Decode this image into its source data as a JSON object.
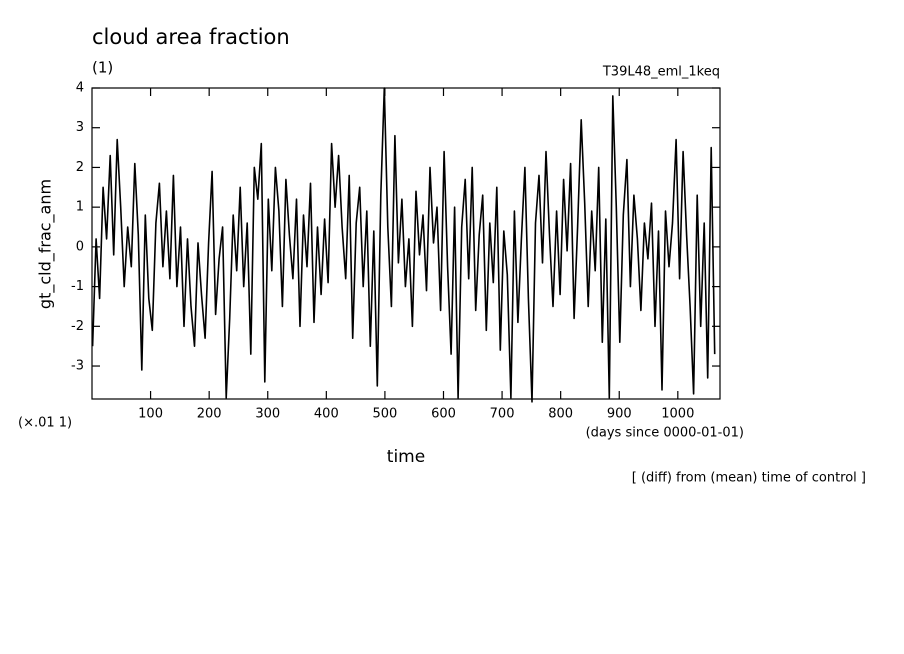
{
  "chart_data": {
    "type": "line",
    "title": "cloud area fraction",
    "subtitle": "(1)",
    "run_label": "T39L48_eml_1keq",
    "ylabel": "gt_cld_frac_anm",
    "y_scale_label": "(×.01 1)",
    "xlabel": "time",
    "x_unit_label": "(days since 0000-01-01)",
    "note": "[ (diff) from (mean) time of control ]",
    "xlim": [
      0,
      1072
    ],
    "ylim": [
      -3.83,
      4
    ],
    "xticks": [
      100,
      200,
      300,
      400,
      500,
      600,
      700,
      800,
      900,
      1000
    ],
    "yticks": [
      -3,
      -2,
      -1,
      0,
      1,
      2,
      3,
      4
    ],
    "x": [
      1,
      7,
      13,
      19,
      25,
      31,
      37,
      43,
      49,
      55,
      61,
      67,
      73,
      79,
      85,
      91,
      97,
      103,
      109,
      115,
      121,
      127,
      133,
      139,
      145,
      151,
      157,
      163,
      169,
      175,
      181,
      187,
      193,
      199,
      205,
      211,
      217,
      223,
      229,
      235,
      241,
      247,
      253,
      259,
      265,
      271,
      277,
      283,
      289,
      295,
      301,
      307,
      313,
      319,
      325,
      331,
      337,
      343,
      349,
      355,
      361,
      367,
      373,
      379,
      385,
      391,
      397,
      403,
      409,
      415,
      421,
      427,
      433,
      439,
      445,
      451,
      457,
      463,
      469,
      475,
      481,
      487,
      493,
      499,
      505,
      511,
      517,
      523,
      529,
      535,
      541,
      547,
      553,
      559,
      565,
      571,
      577,
      583,
      589,
      595,
      601,
      607,
      613,
      619,
      625,
      631,
      637,
      643,
      649,
      655,
      661,
      667,
      673,
      679,
      685,
      691,
      697,
      703,
      709,
      715,
      721,
      727,
      733,
      739,
      745,
      751,
      757,
      763,
      769,
      775,
      781,
      787,
      793,
      799,
      805,
      811,
      817,
      823,
      829,
      835,
      841,
      847,
      853,
      859,
      865,
      871,
      877,
      883,
      889,
      895,
      901,
      907,
      913,
      919,
      925,
      931,
      937,
      943,
      949,
      955,
      961,
      967,
      973,
      979,
      985,
      991,
      997,
      1003,
      1009,
      1015,
      1021,
      1027,
      1033,
      1039,
      1045,
      1051,
      1057,
      1063
    ],
    "series": [
      {
        "name": "gt_cld_frac_anm",
        "color": "#000000",
        "values": [
          -2.5,
          0.2,
          -1.3,
          1.5,
          0.2,
          2.3,
          -0.2,
          2.7,
          1.0,
          -1.0,
          0.5,
          -0.5,
          2.1,
          0.3,
          -3.1,
          0.8,
          -1.3,
          -2.1,
          0.6,
          1.6,
          -0.5,
          0.9,
          -0.8,
          1.8,
          -1.0,
          0.5,
          -2.0,
          0.2,
          -1.5,
          -2.5,
          0.1,
          -1.2,
          -2.3,
          0.1,
          1.9,
          -1.7,
          -0.3,
          0.5,
          -3.8,
          -1.8,
          0.8,
          -0.6,
          1.5,
          -1.0,
          0.6,
          -2.7,
          2.0,
          1.2,
          2.6,
          -3.4,
          1.2,
          -0.6,
          2.0,
          0.9,
          -1.5,
          1.7,
          0.3,
          -0.8,
          1.2,
          -2.0,
          0.8,
          -0.5,
          1.6,
          -1.9,
          0.5,
          -1.2,
          0.7,
          -0.9,
          2.6,
          1.0,
          2.3,
          0.5,
          -0.8,
          1.8,
          -2.3,
          0.6,
          1.5,
          -1.0,
          0.9,
          -2.5,
          0.4,
          -3.5,
          1.3,
          4.0,
          0.5,
          -1.5,
          2.8,
          -0.4,
          1.2,
          -1.0,
          0.2,
          -2.0,
          1.4,
          -0.2,
          0.8,
          -1.1,
          2.0,
          0.1,
          1.0,
          -1.6,
          2.4,
          -0.5,
          -2.7,
          1.0,
          -3.8,
          0.5,
          1.7,
          -0.8,
          2.0,
          -1.6,
          0.3,
          1.3,
          -2.1,
          0.6,
          -0.9,
          1.5,
          -2.6,
          0.4,
          -0.7,
          -3.8,
          0.9,
          -1.9,
          0.2,
          2.0,
          -1.3,
          -3.9,
          0.6,
          1.8,
          -0.4,
          2.4,
          0.3,
          -1.5,
          0.9,
          -1.2,
          1.7,
          -0.1,
          2.1,
          -1.8,
          0.5,
          3.2,
          1.1,
          -1.5,
          0.9,
          -0.6,
          2.0,
          -2.4,
          0.7,
          -3.8,
          3.8,
          1.0,
          -2.4,
          0.8,
          2.2,
          -1.0,
          1.3,
          0.2,
          -1.6,
          0.6,
          -0.3,
          1.1,
          -2.0,
          0.4,
          -3.6,
          0.9,
          -0.5,
          0.6,
          2.7,
          -0.8,
          2.4,
          0.3,
          -1.5,
          -3.7,
          1.3,
          -2.0,
          0.6,
          -3.3,
          2.5,
          -2.7
        ]
      }
    ]
  }
}
